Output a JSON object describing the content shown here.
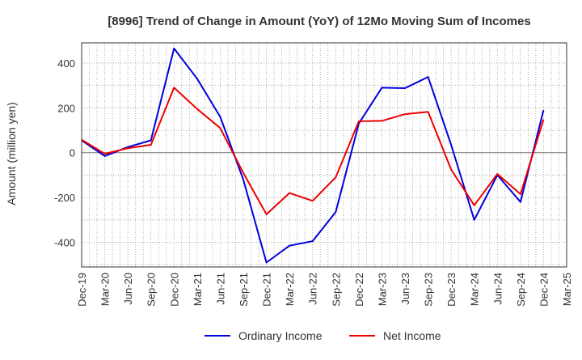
{
  "chart_data": {
    "type": "line",
    "title": "[8996]  Trend of Change in Amount (YoY) of 12Mo Moving Sum of Incomes",
    "xlabel": "",
    "ylabel": "Amount (million yen)",
    "ylim": [
      -510,
      490
    ],
    "yticks": [
      -400,
      -200,
      0,
      200,
      400
    ],
    "grid": true,
    "legend_position": "bottom-center",
    "categories": [
      "Dec-19",
      "Mar-20",
      "Jun-20",
      "Sep-20",
      "Dec-20",
      "Mar-21",
      "Jun-21",
      "Sep-21",
      "Dec-21",
      "Mar-22",
      "Jun-22",
      "Sep-22",
      "Dec-22",
      "Mar-23",
      "Jun-23",
      "Sep-23",
      "Dec-23",
      "Mar-24",
      "Jun-24",
      "Sep-24",
      "Dec-24",
      "Mar-25"
    ],
    "series": [
      {
        "name": "Ordinary Income",
        "color": "#0000dd",
        "values": [
          55,
          -15,
          25,
          55,
          465,
          330,
          160,
          -120,
          -490,
          -415,
          -395,
          -265,
          130,
          290,
          288,
          338,
          35,
          -300,
          -100,
          -220,
          190,
          null
        ]
      },
      {
        "name": "Net Income",
        "color": "#ee0000",
        "values": [
          58,
          -5,
          20,
          35,
          290,
          195,
          110,
          -90,
          -275,
          -180,
          -215,
          -110,
          140,
          142,
          172,
          182,
          -75,
          -235,
          -95,
          -185,
          148,
          null
        ]
      }
    ]
  }
}
